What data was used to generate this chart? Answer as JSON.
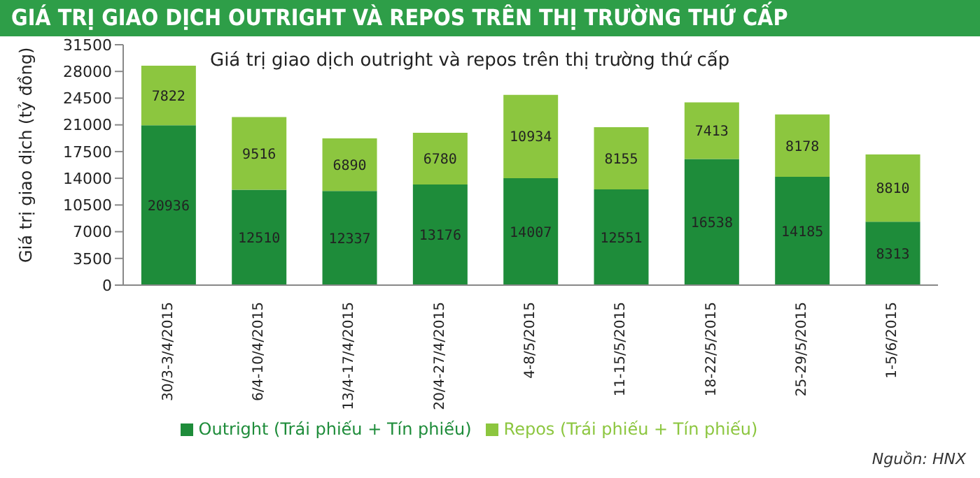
{
  "chart_data": {
    "type": "bar",
    "stacked": true,
    "title": "GIÁ TRỊ GIAO DỊCH OUTRIGHT VÀ REPOS TRÊN THỊ TRƯỜNG THỨ CẤP",
    "subtitle": "Giá trị giao dịch outright và repos trên thị trường thứ cấp",
    "ylabel": "Giá trị giao dịch (tỷ đồng)",
    "categories": [
      "30/3-3/4/2015",
      "6/4-10/4/2015",
      "13/4-17/4/2015",
      "20/4-27/4/2015",
      "4-8/5/2015",
      "11-15/5/2015",
      "18-22/5/2015",
      "25-29/5/2015",
      "1-5/6/2015"
    ],
    "series": [
      {
        "name": "Outright (Trái phiếu + Tín phiếu)",
        "color": "#1e8c3a",
        "values": [
          20936,
          12510,
          12337,
          13176,
          14007,
          12551,
          16538,
          14185,
          8313
        ]
      },
      {
        "name": "Repos (Trái phiếu + Tín phiếu)",
        "color": "#8cc63f",
        "values": [
          7822,
          9516,
          6890,
          6780,
          10934,
          8155,
          7413,
          8178,
          8810
        ]
      }
    ],
    "ylim": [
      0,
      31500
    ],
    "yticks": [
      0,
      3500,
      7000,
      10500,
      14000,
      17500,
      21000,
      24500,
      28000,
      31500
    ],
    "data_labels": true,
    "legend": "bottom",
    "annotations": [
      "Nguồn: HNX"
    ]
  }
}
